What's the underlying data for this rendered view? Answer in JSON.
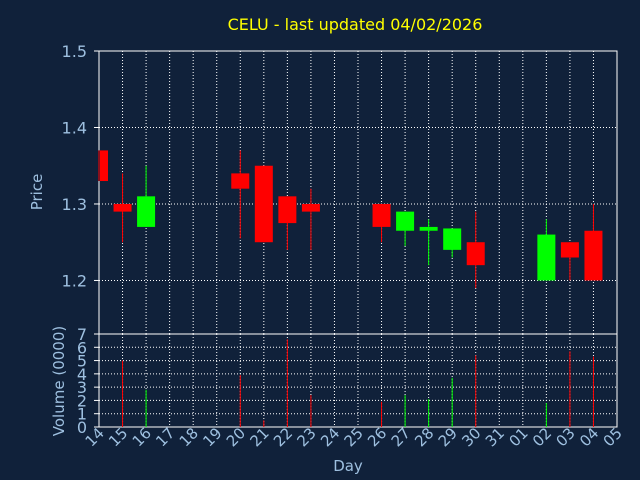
{
  "chart_data": {
    "type": "candlestick",
    "title": "CELU - last updated 04/02/2026",
    "xlabel": "Day",
    "price_panel": {
      "ylabel": "Price",
      "ylim": [
        1.13,
        1.5
      ],
      "yticks": [
        "1.2",
        "1.3",
        "1.4",
        "1.5"
      ],
      "grid": true
    },
    "volume_panel": {
      "ylabel": "Volume (0000)",
      "ylim": [
        0,
        7
      ],
      "yticks": [
        "0",
        "1",
        "2",
        "3",
        "4",
        "5",
        "6",
        "7"
      ],
      "grid": true
    },
    "x_tick_labels": [
      "14",
      "15",
      "16",
      "17",
      "18",
      "19",
      "20",
      "21",
      "22",
      "23",
      "24",
      "25",
      "26",
      "27",
      "28",
      "29",
      "30",
      "31",
      "01",
      "02",
      "03",
      "04",
      "05"
    ],
    "candles": [
      {
        "day": "14",
        "open": 1.37,
        "close": 1.33,
        "high": 1.37,
        "low": 1.33,
        "volume": 0
      },
      {
        "day": "15",
        "open": 1.3,
        "close": 1.29,
        "high": 1.34,
        "low": 1.25,
        "volume": 5.0
      },
      {
        "day": "16",
        "open": 1.27,
        "close": 1.31,
        "high": 1.35,
        "low": 1.27,
        "volume": 2.8
      },
      {
        "day": "20",
        "open": 1.34,
        "close": 1.32,
        "high": 1.37,
        "low": 1.255,
        "volume": 3.9
      },
      {
        "day": "21",
        "open": 1.35,
        "close": 1.25,
        "high": 1.35,
        "low": 1.25,
        "volume": 0.5
      },
      {
        "day": "22",
        "open": 1.31,
        "close": 1.275,
        "high": 1.31,
        "low": 1.24,
        "volume": 6.6
      },
      {
        "day": "23",
        "open": 1.3,
        "close": 1.29,
        "high": 1.32,
        "low": 1.24,
        "volume": 2.4
      },
      {
        "day": "26",
        "open": 1.3,
        "close": 1.27,
        "high": 1.3,
        "low": 1.25,
        "volume": 1.9
      },
      {
        "day": "27",
        "open": 1.265,
        "close": 1.29,
        "high": 1.29,
        "low": 1.245,
        "volume": 2.4
      },
      {
        "day": "28",
        "open": 1.265,
        "close": 1.27,
        "high": 1.28,
        "low": 1.22,
        "volume": 2.1
      },
      {
        "day": "29",
        "open": 1.24,
        "close": 1.268,
        "high": 1.268,
        "low": 1.23,
        "volume": 3.7
      },
      {
        "day": "30",
        "open": 1.25,
        "close": 1.22,
        "high": 1.29,
        "low": 1.19,
        "volume": 5.4
      },
      {
        "day": "02",
        "open": 1.2,
        "close": 1.26,
        "high": 1.28,
        "low": 1.2,
        "volume": 1.8
      },
      {
        "day": "03",
        "open": 1.25,
        "close": 1.23,
        "high": 1.25,
        "low": 1.2,
        "volume": 5.7
      },
      {
        "day": "04",
        "open": 1.265,
        "close": 1.2,
        "high": 1.3,
        "low": 1.2,
        "volume": 5.3
      }
    ],
    "colors": {
      "background": "#10213a",
      "up": "#00ff00",
      "down": "#ff0000",
      "title": "#ffff00",
      "axis_text": "#9ec0e0",
      "frame": "#ffffff",
      "grid": "#ffffff"
    }
  }
}
